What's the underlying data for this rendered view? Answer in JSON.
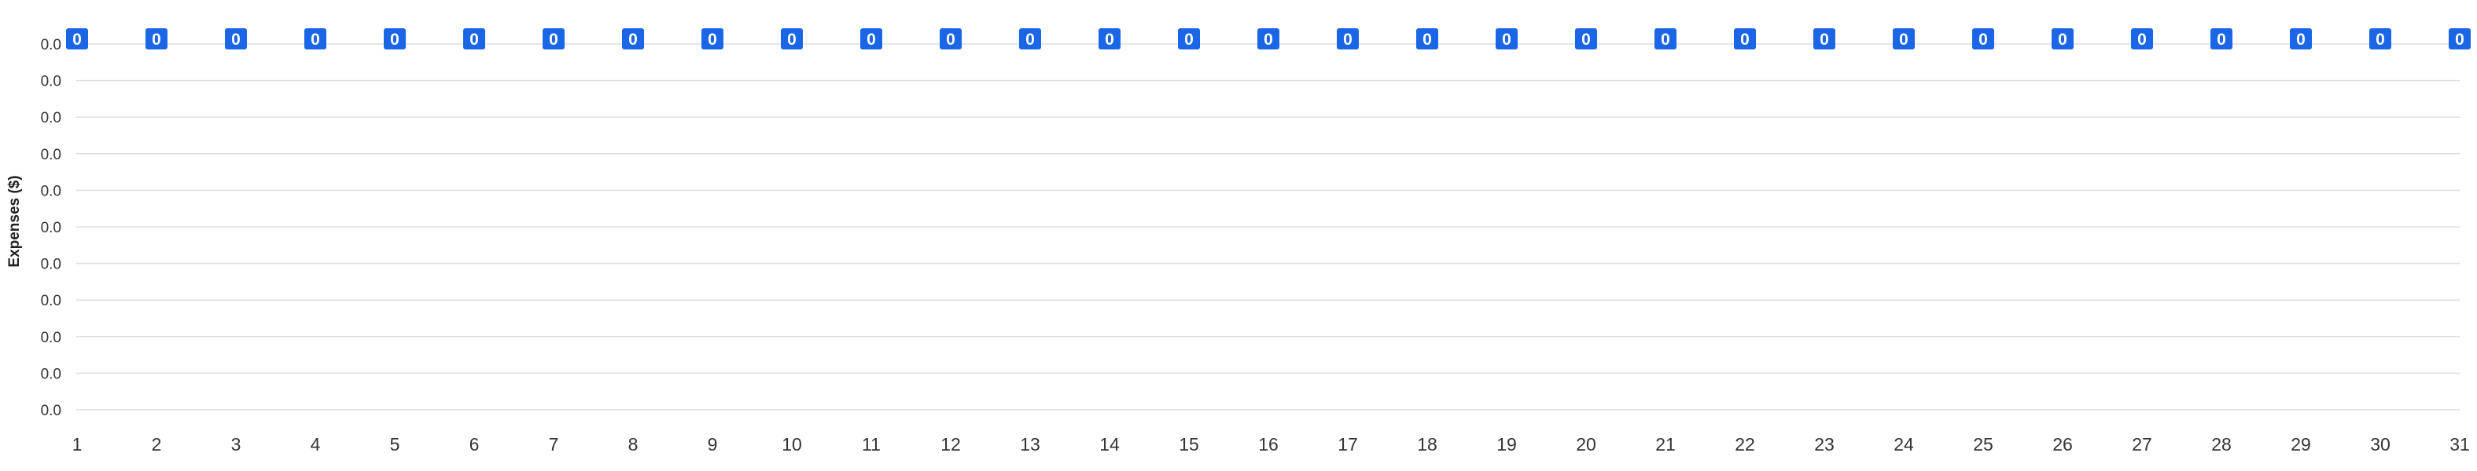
{
  "chart_data": {
    "type": "bar",
    "title": "",
    "xlabel": "",
    "ylabel": "Expenses ($)",
    "categories": [
      "1",
      "2",
      "3",
      "4",
      "5",
      "6",
      "7",
      "8",
      "9",
      "10",
      "11",
      "12",
      "13",
      "14",
      "15",
      "16",
      "17",
      "18",
      "19",
      "20",
      "21",
      "22",
      "23",
      "24",
      "25",
      "26",
      "27",
      "28",
      "29",
      "30",
      "31"
    ],
    "series": [
      {
        "values": [
          0,
          0,
          0,
          0,
          0,
          0,
          0,
          0,
          0,
          0,
          0,
          0,
          0,
          0,
          0,
          0,
          0,
          0,
          0,
          0,
          0,
          0,
          0,
          0,
          0,
          0,
          0,
          0,
          0,
          0,
          0
        ],
        "data_labels": [
          "0",
          "0",
          "0",
          "0",
          "0",
          "0",
          "0",
          "0",
          "0",
          "0",
          "0",
          "0",
          "0",
          "0",
          "0",
          "0",
          "0",
          "0",
          "0",
          "0",
          "0",
          "0",
          "0",
          "0",
          "0",
          "0",
          "0",
          "0",
          "0",
          "0",
          "0"
        ]
      }
    ],
    "y_ticks": [
      "0.0",
      "0.0",
      "0.0",
      "0.0",
      "0.0",
      "0.0",
      "0.0",
      "0.0",
      "0.0",
      "0.0",
      "0.0"
    ],
    "grid": true,
    "legend": "none",
    "colors": {
      "label_background": "#1a66e6",
      "label_text": "#ffffff",
      "grid": "#dddddd",
      "axis_text": "#333333"
    }
  }
}
